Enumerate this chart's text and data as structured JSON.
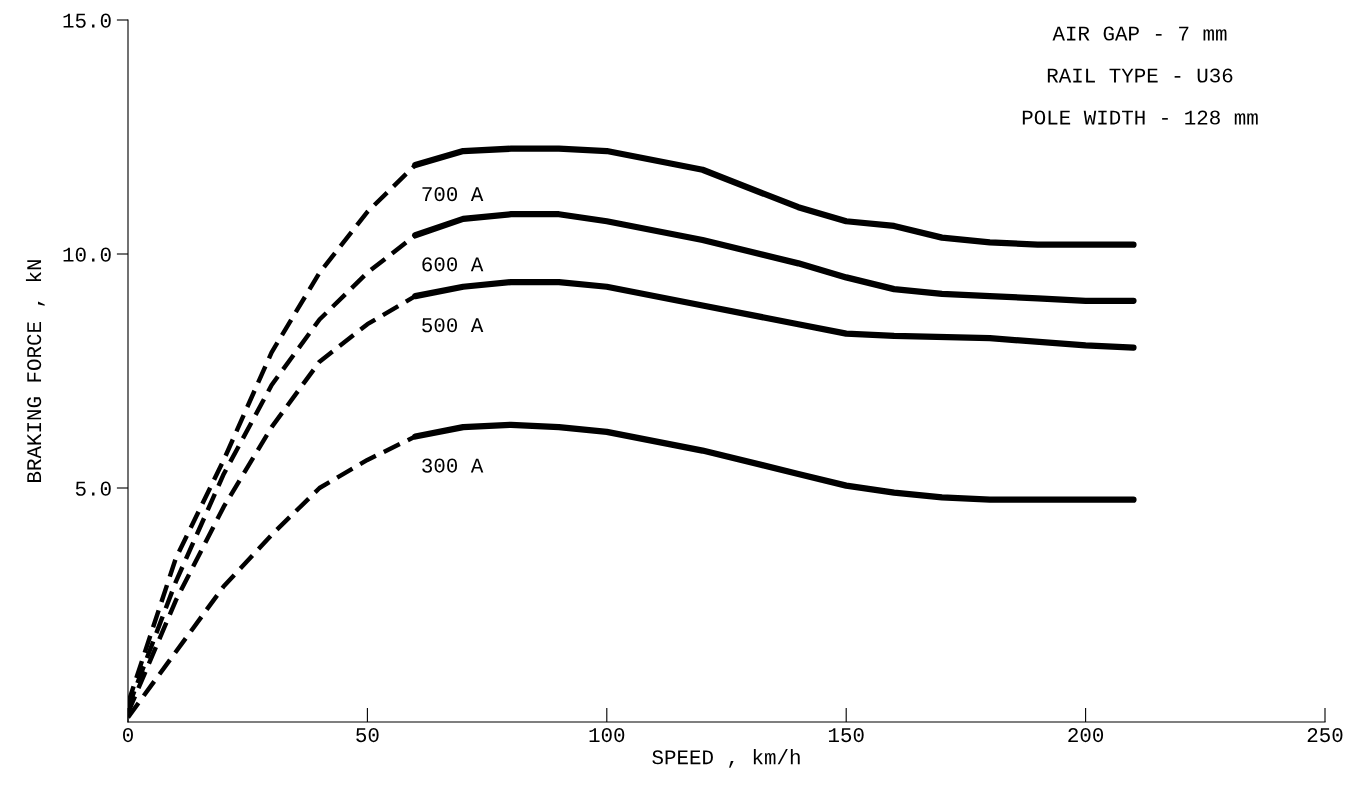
{
  "chart_data": {
    "type": "line",
    "xlabel": "SPEED , km/h",
    "ylabel": "BRAKING FORCE , kN",
    "xlim": [
      0,
      250
    ],
    "xticks": [
      0,
      50,
      100,
      150,
      200,
      250
    ],
    "ylim": [
      0,
      15
    ],
    "yticks": [
      {
        "value": 5,
        "label": "5.0"
      },
      {
        "value": 10,
        "label": "10.0"
      },
      {
        "value": 15,
        "label": "15.0"
      }
    ],
    "grid": false,
    "marker": "none",
    "series": [
      {
        "color": "#000000",
        "line_style": "dashed",
        "x": [
          0,
          10,
          20,
          30,
          40,
          50,
          60
        ],
        "values": [
          0.4,
          3.5,
          5.6,
          7.9,
          9.6,
          10.9,
          11.9
        ]
      },
      {
        "name": "700 A",
        "color": "#000000",
        "line_style": "solid",
        "x": [
          60,
          70,
          80,
          90,
          100,
          120,
          140,
          150,
          160,
          170,
          180,
          190,
          200,
          210
        ],
        "values": [
          11.9,
          12.2,
          12.25,
          12.25,
          12.2,
          11.8,
          11.0,
          10.7,
          10.6,
          10.35,
          10.25,
          10.2,
          10.2,
          10.2
        ]
      },
      {
        "color": "#000000",
        "line_style": "dashed",
        "x": [
          0,
          10,
          20,
          30,
          40,
          50,
          60
        ],
        "values": [
          0.3,
          3.0,
          5.3,
          7.2,
          8.6,
          9.6,
          10.4
        ]
      },
      {
        "name": "600 A",
        "color": "#000000",
        "line_style": "solid",
        "x": [
          60,
          70,
          80,
          90,
          100,
          120,
          140,
          150,
          160,
          170,
          180,
          190,
          200,
          210
        ],
        "values": [
          10.4,
          10.75,
          10.85,
          10.85,
          10.7,
          10.3,
          9.8,
          9.5,
          9.25,
          9.15,
          9.1,
          9.05,
          9.0,
          9.0
        ]
      },
      {
        "color": "#000000",
        "line_style": "dashed",
        "x": [
          0,
          10,
          20,
          30,
          40,
          50,
          60
        ],
        "values": [
          0.2,
          2.6,
          4.6,
          6.3,
          7.7,
          8.5,
          9.1
        ]
      },
      {
        "name": "500 A",
        "color": "#000000",
        "line_style": "solid",
        "x": [
          60,
          70,
          80,
          90,
          100,
          120,
          140,
          150,
          160,
          180,
          200,
          210
        ],
        "values": [
          9.1,
          9.3,
          9.4,
          9.4,
          9.3,
          8.9,
          8.5,
          8.3,
          8.25,
          8.2,
          8.05,
          8.0
        ]
      },
      {
        "color": "#000000",
        "line_style": "dashed",
        "x": [
          0,
          10,
          20,
          30,
          40,
          50,
          60
        ],
        "values": [
          0.1,
          1.5,
          2.9,
          4.0,
          5.0,
          5.6,
          6.1
        ]
      },
      {
        "name": "300 A",
        "color": "#000000",
        "line_style": "solid",
        "x": [
          60,
          70,
          80,
          90,
          100,
          120,
          140,
          150,
          160,
          170,
          180,
          200,
          210
        ],
        "values": [
          6.1,
          6.3,
          6.35,
          6.3,
          6.2,
          5.8,
          5.3,
          5.05,
          4.9,
          4.8,
          4.75,
          4.75,
          4.75
        ]
      }
    ],
    "annotations": [
      "AIR GAP - 7 mm",
      "RAIL TYPE - U36",
      "POLE WIDTH - 128 mm"
    ]
  }
}
